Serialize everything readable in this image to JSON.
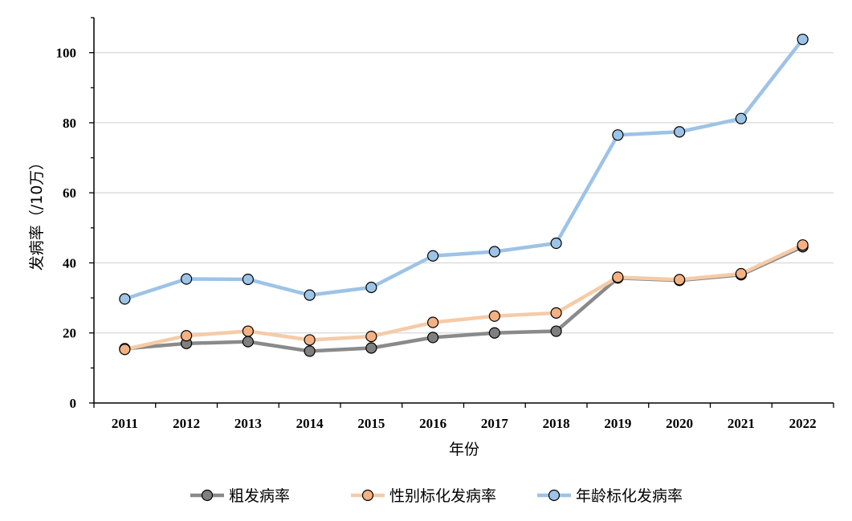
{
  "chart_data": {
    "type": "line",
    "xlabel": "年份",
    "ylabel": "发病率（/10万）",
    "categories": [
      "2011",
      "2012",
      "2013",
      "2014",
      "2015",
      "2016",
      "2017",
      "2018",
      "2019",
      "2020",
      "2021",
      "2022"
    ],
    "ylim": [
      0,
      110
    ],
    "yticks": [
      0,
      20,
      40,
      60,
      80,
      100
    ],
    "grid": true,
    "legend_position": "bottom",
    "series": [
      {
        "name": "粗发病率",
        "values": [
          15.5,
          17.0,
          17.5,
          14.8,
          15.7,
          18.7,
          20.0,
          20.5,
          35.7,
          35.0,
          36.6,
          44.6
        ],
        "line_color": "#8a8a8a",
        "marker_color": "#7f7f7f"
      },
      {
        "name": "性别标化发病率",
        "values": [
          15.3,
          19.2,
          20.5,
          18.0,
          19.0,
          23.0,
          24.8,
          25.7,
          35.9,
          35.2,
          36.9,
          45.1
        ],
        "line_color": "#f5cba7",
        "marker_color": "#f4b183"
      },
      {
        "name": "年龄标化发病率",
        "values": [
          29.7,
          35.4,
          35.3,
          30.8,
          33.0,
          42.0,
          43.2,
          45.6,
          76.5,
          77.4,
          81.2,
          103.8
        ],
        "line_color": "#9dc3e6",
        "marker_color": "#9dc3e6"
      }
    ]
  }
}
